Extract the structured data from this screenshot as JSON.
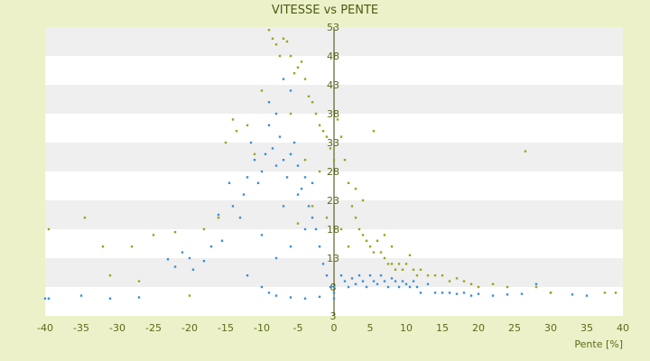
{
  "chart_data": {
    "type": "scatter",
    "title": "VITESSE vs PENTE",
    "xlabel": "Pente [%]",
    "ylabel": "",
    "xlim": [
      -40,
      40
    ],
    "ylim": [
      3,
      53
    ],
    "x_ticks": [
      -40,
      -35,
      -30,
      -25,
      -20,
      -15,
      -10,
      -5,
      0,
      5,
      10,
      15,
      20,
      25,
      30,
      35,
      40
    ],
    "y_ticks": [
      3,
      8,
      13,
      18,
      23,
      28,
      33,
      38,
      43,
      48,
      53
    ],
    "grid": "horizontal alternating bands",
    "legend": "none",
    "colors": {
      "series_a": "#3a8fd6",
      "series_b": "#9aa41c",
      "band_light": "#ffffff",
      "band_dark": "#efefef",
      "background": "#ecf1c9"
    },
    "series": [
      {
        "color": "#3a8fd6",
        "points": [
          [
            -40,
            6
          ],
          [
            -39.5,
            6
          ],
          [
            -35,
            6.5
          ],
          [
            -31,
            6
          ],
          [
            -27,
            6.2
          ],
          [
            -23,
            12.8
          ],
          [
            -22,
            11.5
          ],
          [
            -21,
            14
          ],
          [
            -20,
            13
          ],
          [
            -19.5,
            11
          ],
          [
            -18,
            12.5
          ],
          [
            -17,
            15
          ],
          [
            -16,
            20.5
          ],
          [
            -15.5,
            16
          ],
          [
            -14.5,
            26
          ],
          [
            -14,
            22
          ],
          [
            -13,
            20
          ],
          [
            -12.5,
            24
          ],
          [
            -12,
            27
          ],
          [
            -11.5,
            33
          ],
          [
            -11,
            30
          ],
          [
            -10.5,
            26
          ],
          [
            -10,
            28
          ],
          [
            -9.5,
            31
          ],
          [
            -9,
            36
          ],
          [
            -8.5,
            32
          ],
          [
            -8,
            29
          ],
          [
            -7.5,
            34
          ],
          [
            -7,
            30
          ],
          [
            -6.5,
            27
          ],
          [
            -6,
            31
          ],
          [
            -5.5,
            33
          ],
          [
            -5,
            29
          ],
          [
            -4.5,
            25
          ],
          [
            -4,
            27
          ],
          [
            -3.5,
            22
          ],
          [
            -3,
            20
          ],
          [
            -2.5,
            18
          ],
          [
            -2,
            15
          ],
          [
            -1.5,
            12
          ],
          [
            -1,
            10
          ],
          [
            -0.5,
            8
          ],
          [
            0,
            6
          ],
          [
            0,
            7
          ],
          [
            0,
            8
          ],
          [
            1,
            10
          ],
          [
            1.5,
            9
          ],
          [
            2,
            8
          ],
          [
            2.5,
            9.5
          ],
          [
            3,
            8.5
          ],
          [
            3.5,
            10
          ],
          [
            4,
            9
          ],
          [
            4.5,
            8
          ],
          [
            5,
            10
          ],
          [
            5.5,
            9
          ],
          [
            6,
            8.5
          ],
          [
            6.5,
            10
          ],
          [
            7,
            9
          ],
          [
            7.5,
            8
          ],
          [
            8,
            9.5
          ],
          [
            8.5,
            9
          ],
          [
            9,
            8
          ],
          [
            9.5,
            9
          ],
          [
            10,
            8.5
          ],
          [
            10.5,
            8
          ],
          [
            11,
            9
          ],
          [
            11.5,
            8
          ],
          [
            12,
            7
          ],
          [
            13,
            8.5
          ],
          [
            14,
            7
          ],
          [
            15,
            7
          ],
          [
            16,
            7
          ],
          [
            17,
            6.8
          ],
          [
            18,
            7
          ],
          [
            19,
            6.5
          ],
          [
            20,
            6.8
          ],
          [
            22,
            6.5
          ],
          [
            24,
            6.7
          ],
          [
            26,
            6.8
          ],
          [
            28,
            8.5
          ],
          [
            30,
            7
          ],
          [
            33,
            6.7
          ],
          [
            35,
            6.5
          ],
          [
            -10,
            8
          ],
          [
            -9,
            7
          ],
          [
            -8,
            6.5
          ],
          [
            -6,
            6.2
          ],
          [
            -4,
            6
          ],
          [
            -2,
            6.3
          ],
          [
            -12,
            10
          ],
          [
            -8,
            13
          ],
          [
            -6,
            15
          ],
          [
            -4,
            18
          ],
          [
            -10,
            17
          ],
          [
            -7,
            22
          ],
          [
            -5,
            24
          ],
          [
            -3,
            26
          ],
          [
            -9,
            40
          ],
          [
            -8,
            38
          ],
          [
            -7,
            44
          ],
          [
            -6,
            42
          ]
        ]
      },
      {
        "color": "#9aa41c",
        "points": [
          [
            -39.5,
            18
          ],
          [
            -34.5,
            20
          ],
          [
            -32,
            15
          ],
          [
            -31,
            10
          ],
          [
            -28,
            15
          ],
          [
            -27,
            9
          ],
          [
            -25,
            17
          ],
          [
            -22,
            17.5
          ],
          [
            -20,
            6.5
          ],
          [
            -18,
            18
          ],
          [
            -16,
            20
          ],
          [
            -15,
            33
          ],
          [
            -14,
            37
          ],
          [
            -13.5,
            35
          ],
          [
            -12,
            36
          ],
          [
            -11,
            31
          ],
          [
            -10,
            42
          ],
          [
            -9,
            52.5
          ],
          [
            -8.5,
            51
          ],
          [
            -8,
            50
          ],
          [
            -7.5,
            48
          ],
          [
            -7,
            51
          ],
          [
            -6.5,
            50.5
          ],
          [
            -6,
            48
          ],
          [
            -5.5,
            45
          ],
          [
            -5,
            46
          ],
          [
            -4.5,
            47
          ],
          [
            -4,
            44
          ],
          [
            -3.5,
            41
          ],
          [
            -3,
            40
          ],
          [
            -2.5,
            38
          ],
          [
            -2,
            36
          ],
          [
            -1.5,
            35
          ],
          [
            -1,
            34
          ],
          [
            -0.5,
            32
          ],
          [
            0,
            30
          ],
          [
            0.5,
            37
          ],
          [
            1,
            34
          ],
          [
            1.5,
            30
          ],
          [
            2,
            26
          ],
          [
            2.5,
            22
          ],
          [
            3,
            20
          ],
          [
            3.5,
            18
          ],
          [
            4,
            17
          ],
          [
            4.5,
            16
          ],
          [
            5,
            15
          ],
          [
            5.5,
            14
          ],
          [
            6,
            16
          ],
          [
            6.5,
            14
          ],
          [
            7,
            13
          ],
          [
            7.5,
            12
          ],
          [
            8,
            12
          ],
          [
            8.5,
            11
          ],
          [
            9,
            12
          ],
          [
            9.5,
            11
          ],
          [
            10,
            12
          ],
          [
            10.5,
            13.5
          ],
          [
            11,
            11
          ],
          [
            11.5,
            10
          ],
          [
            12,
            11
          ],
          [
            13,
            10
          ],
          [
            14,
            10
          ],
          [
            15,
            10
          ],
          [
            16,
            9
          ],
          [
            17,
            9.5
          ],
          [
            18,
            9
          ],
          [
            19,
            8.5
          ],
          [
            20,
            8
          ],
          [
            22,
            8.5
          ],
          [
            24,
            8
          ],
          [
            26.5,
            31.5
          ],
          [
            28,
            8
          ],
          [
            30,
            7
          ],
          [
            37.5,
            7
          ],
          [
            39,
            7
          ],
          [
            5.5,
            35
          ],
          [
            4,
            23
          ],
          [
            3,
            25
          ],
          [
            7,
            17
          ],
          [
            8,
            15
          ],
          [
            -6,
            38
          ],
          [
            -4,
            30
          ],
          [
            -2,
            28
          ],
          [
            -3,
            22
          ],
          [
            -5,
            19
          ],
          [
            -1,
            20
          ],
          [
            1,
            18
          ],
          [
            2,
            15
          ]
        ]
      }
    ]
  }
}
